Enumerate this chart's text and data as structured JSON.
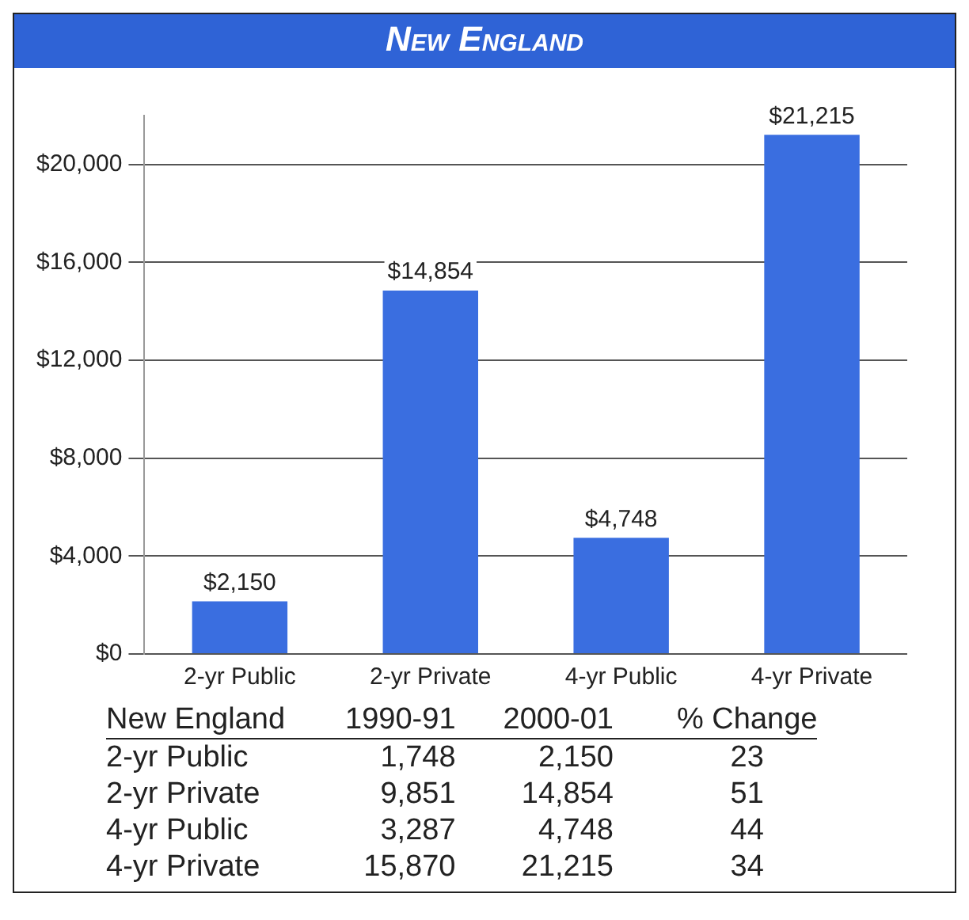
{
  "chart_data": {
    "type": "bar",
    "title": "New England",
    "categories": [
      "2-yr Public",
      "2-yr Private",
      "4-yr Public",
      "4-yr Private"
    ],
    "values": [
      2150,
      14854,
      4748,
      21215
    ],
    "value_labels": [
      "$2,150",
      "$14,854",
      "$4,748",
      "$21,215"
    ],
    "color": "#3a6ee0",
    "ylim": [
      0,
      22000
    ],
    "yticks": [
      {
        "value": 0,
        "label": "$0"
      },
      {
        "value": 4000,
        "label": "$4,000"
      },
      {
        "value": 8000,
        "label": "$8,000"
      },
      {
        "value": 12000,
        "label": "$12,000"
      },
      {
        "value": 16000,
        "label": "$16,000"
      },
      {
        "value": 20000,
        "label": "$20,000"
      }
    ],
    "grid": "y",
    "legend": false,
    "annotations": [
      "New England",
      "1990-91",
      "2000-01",
      "% Change",
      "2-yr Public",
      "1,748",
      "2,150",
      "23",
      "2-yr Private",
      "9,851",
      "14,854",
      "51",
      "4-yr Public",
      "3,287",
      "4,748",
      "44",
      "4-yr Private",
      "15,870",
      "21,215",
      "34"
    ]
  }
}
